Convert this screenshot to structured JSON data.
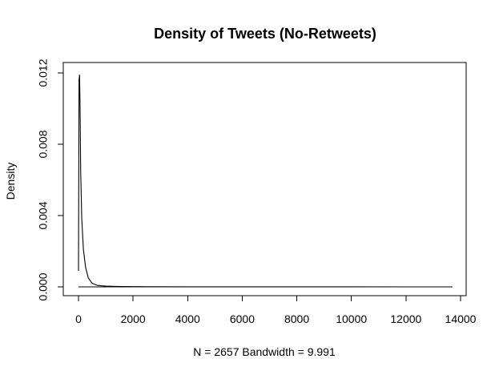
{
  "chart_data": {
    "type": "line",
    "title": "Density of Tweets (No-Retweets)",
    "xlabel": "N = 2657   Bandwidth = 9.991",
    "ylabel": "Density",
    "xlim": [
      0,
      14000
    ],
    "ylim": [
      0,
      0.012
    ],
    "x_ticks": [
      0,
      2000,
      4000,
      6000,
      8000,
      10000,
      12000,
      14000
    ],
    "x_tick_labels": [
      "0",
      "2000",
      "4000",
      "6000",
      "8000",
      "10000",
      "12000",
      "14000"
    ],
    "y_ticks": [
      0.0,
      0.004,
      0.008,
      0.012
    ],
    "y_tick_labels": [
      "0.000",
      "0.004",
      "0.008",
      "0.012"
    ],
    "series": [
      {
        "x": [
          0,
          20,
          40,
          60,
          80,
          120,
          180,
          260,
          360,
          500,
          700,
          1000,
          1500,
          2500,
          4000,
          6000,
          8000,
          10000,
          12000,
          13700
        ],
        "values": [
          0.0009,
          0.0116,
          0.0119,
          0.0098,
          0.0065,
          0.0038,
          0.0021,
          0.0011,
          0.0005,
          0.0002,
          8e-05,
          4e-05,
          2e-05,
          1e-05,
          5e-06,
          2e-06,
          1e-06,
          1e-06,
          0.0,
          0.0
        ]
      }
    ],
    "grid": false,
    "legend": "none",
    "colors": {
      "line": "#000000",
      "background": "#ffffff"
    }
  }
}
